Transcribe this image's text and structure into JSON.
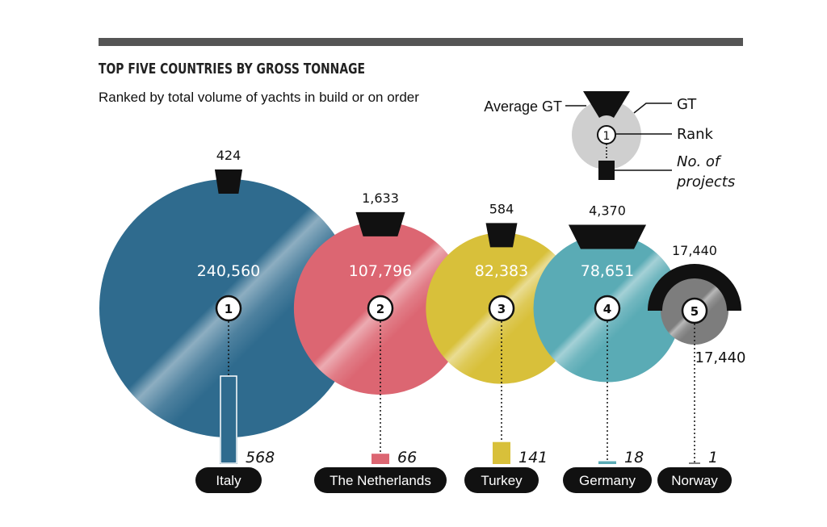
{
  "title": "TOP FIVE COUNTRIES BY GROSS TONNAGE",
  "subtitle": "Ranked by total volume of yachts in build or on order",
  "legend": {
    "average_gt": "Average GT",
    "gt": "GT",
    "rank": "Rank",
    "rank_sample": "1",
    "projects_line1": "No. of",
    "projects_line2": "projects"
  },
  "colors": {
    "italy": "#2f6b8e",
    "netherlands": "#dc6672",
    "turkey": "#d8c03a",
    "germany": "#5aabb5",
    "norway": "#7d7d7d",
    "norway_light": "#b8b8b8",
    "ink": "#111111",
    "bar": "#555555",
    "legend_grey": "#cfcfcf"
  },
  "chart_data": {
    "type": "bubble",
    "title": "TOP FIVE COUNTRIES BY GROSS TONNAGE",
    "subtitle": "Ranked by total volume of yachts in build or on order",
    "countries": [
      {
        "name": "Italy",
        "rank": "1",
        "gt": 240560,
        "gt_label": "240,560",
        "avg_gt": 424,
        "avg_gt_label": "424",
        "projects": 568,
        "projects_label": "568",
        "color_key": "italy"
      },
      {
        "name": "The Netherlands",
        "rank": "2",
        "gt": 107796,
        "gt_label": "107,796",
        "avg_gt": 1633,
        "avg_gt_label": "1,633",
        "projects": 66,
        "projects_label": "66",
        "color_key": "netherlands"
      },
      {
        "name": "Turkey",
        "rank": "3",
        "gt": 82383,
        "gt_label": "82,383",
        "avg_gt": 584,
        "avg_gt_label": "584",
        "projects": 141,
        "projects_label": "141",
        "color_key": "turkey"
      },
      {
        "name": "Germany",
        "rank": "4",
        "gt": 78651,
        "gt_label": "78,651",
        "avg_gt": 4370,
        "avg_gt_label": "4,370",
        "projects": 18,
        "projects_label": "18",
        "color_key": "germany"
      },
      {
        "name": "Norway",
        "rank": "5",
        "gt": 17440,
        "gt_label": "17,440",
        "avg_gt": 17440,
        "avg_gt_label": "17,440",
        "projects": 1,
        "projects_label": "1",
        "color_key": "norway"
      }
    ]
  }
}
